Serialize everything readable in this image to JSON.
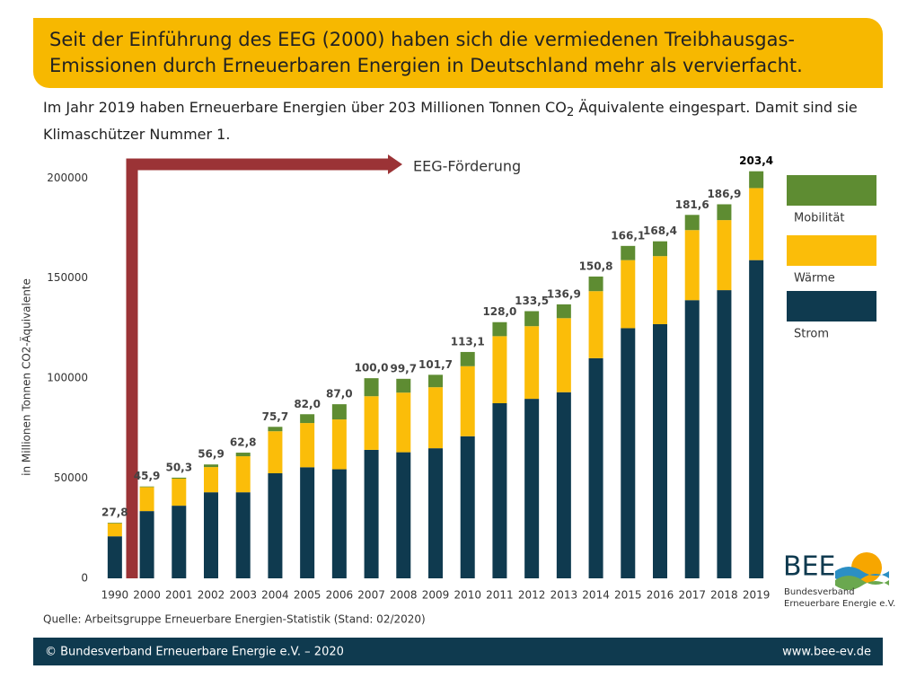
{
  "header": {
    "title": "Seit der Einführung des EEG (2000) haben sich die vermiedenen Treibhausgas-Emissionen durch Erneuerbaren Energien in Deutschland mehr als vervierfacht."
  },
  "subtitle": {
    "before": "Im Jahr 2019 haben Erneuerbare Energien über 203 Millionen Tonnen CO",
    "sub": "2",
    "after": " Äquivalente eingespart. Damit sind sie Klimaschützer Nummer 1."
  },
  "chart_data": {
    "type": "bar",
    "stacked": true,
    "y_axis_label": "in Millionen Tonnen CO2-Äquivalente",
    "annotation": "EEG-Förderung",
    "categories": [
      "1990",
      "2000",
      "2001",
      "2002",
      "2003",
      "2004",
      "2005",
      "2006",
      "2007",
      "2008",
      "2009",
      "2010",
      "2011",
      "2012",
      "2013",
      "2014",
      "2015",
      "2016",
      "2017",
      "2018",
      "2019"
    ],
    "series": [
      {
        "name": "Strom",
        "color": "#0f3a4f",
        "values": [
          21000,
          33600,
          36300,
          43000,
          43000,
          52500,
          55500,
          54500,
          64200,
          63000,
          65000,
          71000,
          87500,
          89700,
          93000,
          110000,
          125000,
          127000,
          139000,
          144000,
          159000
        ]
      },
      {
        "name": "Wärme",
        "color": "#fbbd09",
        "values": [
          6500,
          12000,
          13500,
          12600,
          18000,
          21000,
          22100,
          24900,
          26800,
          29800,
          30500,
          35000,
          33500,
          36300,
          37000,
          33500,
          34000,
          34000,
          35000,
          35000,
          36000
        ]
      },
      {
        "name": "Mobilität",
        "color": "#5e8c32",
        "values": [
          300,
          300,
          500,
          1300,
          1800,
          2200,
          4400,
          7600,
          9000,
          6900,
          6200,
          7100,
          7000,
          7500,
          6900,
          7300,
          7100,
          7400,
          7600,
          7900,
          8400
        ]
      }
    ],
    "totals": {
      "values": [
        27800,
        45900,
        50300,
        56900,
        62800,
        75700,
        82000,
        87000,
        100000,
        99700,
        101700,
        113100,
        128000,
        133500,
        136900,
        150800,
        166100,
        168400,
        181600,
        186900,
        203400
      ],
      "value_labels": [
        "27,8",
        "45,9",
        "50,3",
        "56,9",
        "62,8",
        "75,7",
        "82,0",
        "87,0",
        "100,0",
        "99,7",
        "101,7",
        "113,1",
        "128,0",
        "133,5",
        "136,9",
        "150,8",
        "166,1",
        "168,4",
        "181,6",
        "186,9",
        "203,4"
      ]
    },
    "ylim": [
      0,
      210000
    ],
    "yticks": [
      0,
      50000,
      100000,
      150000,
      200000
    ],
    "grid": false,
    "legend": "right"
  },
  "source": "Quelle: Arbeitsgruppe Erneuerbare Energien-Statistik (Stand: 02/2020)",
  "footer": {
    "left": "© Bundesverband Erneuerbare Energie e.V. – 2020",
    "right": "www.bee-ev.de"
  },
  "logo": {
    "name": "BEE",
    "line1": "Bundesverband",
    "line2": "Erneuerbare Energie e.V."
  }
}
